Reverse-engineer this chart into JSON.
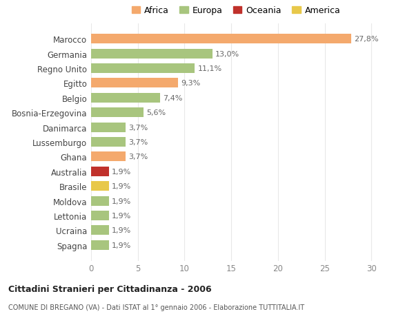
{
  "categories": [
    "Marocco",
    "Germania",
    "Regno Unito",
    "Egitto",
    "Belgio",
    "Bosnia-Erzegovina",
    "Danimarca",
    "Lussemburgo",
    "Ghana",
    "Australia",
    "Brasile",
    "Moldova",
    "Lettonia",
    "Ucraina",
    "Spagna"
  ],
  "values": [
    27.8,
    13.0,
    11.1,
    9.3,
    7.4,
    5.6,
    3.7,
    3.7,
    3.7,
    1.9,
    1.9,
    1.9,
    1.9,
    1.9,
    1.9
  ],
  "labels": [
    "27,8%",
    "13,0%",
    "11,1%",
    "9,3%",
    "7,4%",
    "5,6%",
    "3,7%",
    "3,7%",
    "3,7%",
    "1,9%",
    "1,9%",
    "1,9%",
    "1,9%",
    "1,9%",
    "1,9%"
  ],
  "continents": [
    "Africa",
    "Europa",
    "Europa",
    "Africa",
    "Europa",
    "Europa",
    "Europa",
    "Europa",
    "Africa",
    "Oceania",
    "America",
    "Europa",
    "Europa",
    "Europa",
    "Europa"
  ],
  "bar_colors": {
    "Africa": "#F4A96D",
    "Europa": "#A8C57E",
    "Oceania": "#C0312B",
    "America": "#E8C84A"
  },
  "legend_items": [
    "Africa",
    "Europa",
    "Oceania",
    "America"
  ],
  "legend_colors": [
    "#F4A96D",
    "#A8C57E",
    "#C0312B",
    "#E8C84A"
  ],
  "title1": "Cittadini Stranieri per Cittadinanza - 2006",
  "title2": "COMUNE DI BREGANO (VA) - Dati ISTAT al 1° gennaio 2006 - Elaborazione TUTTITALIA.IT",
  "xlim": [
    0,
    31
  ],
  "xticks": [
    0,
    5,
    10,
    15,
    20,
    25,
    30
  ],
  "bg_color": "#FFFFFF",
  "grid_color": "#E8E8E8",
  "bar_label_fontsize": 8,
  "ytick_fontsize": 8.5,
  "xtick_fontsize": 8.5
}
